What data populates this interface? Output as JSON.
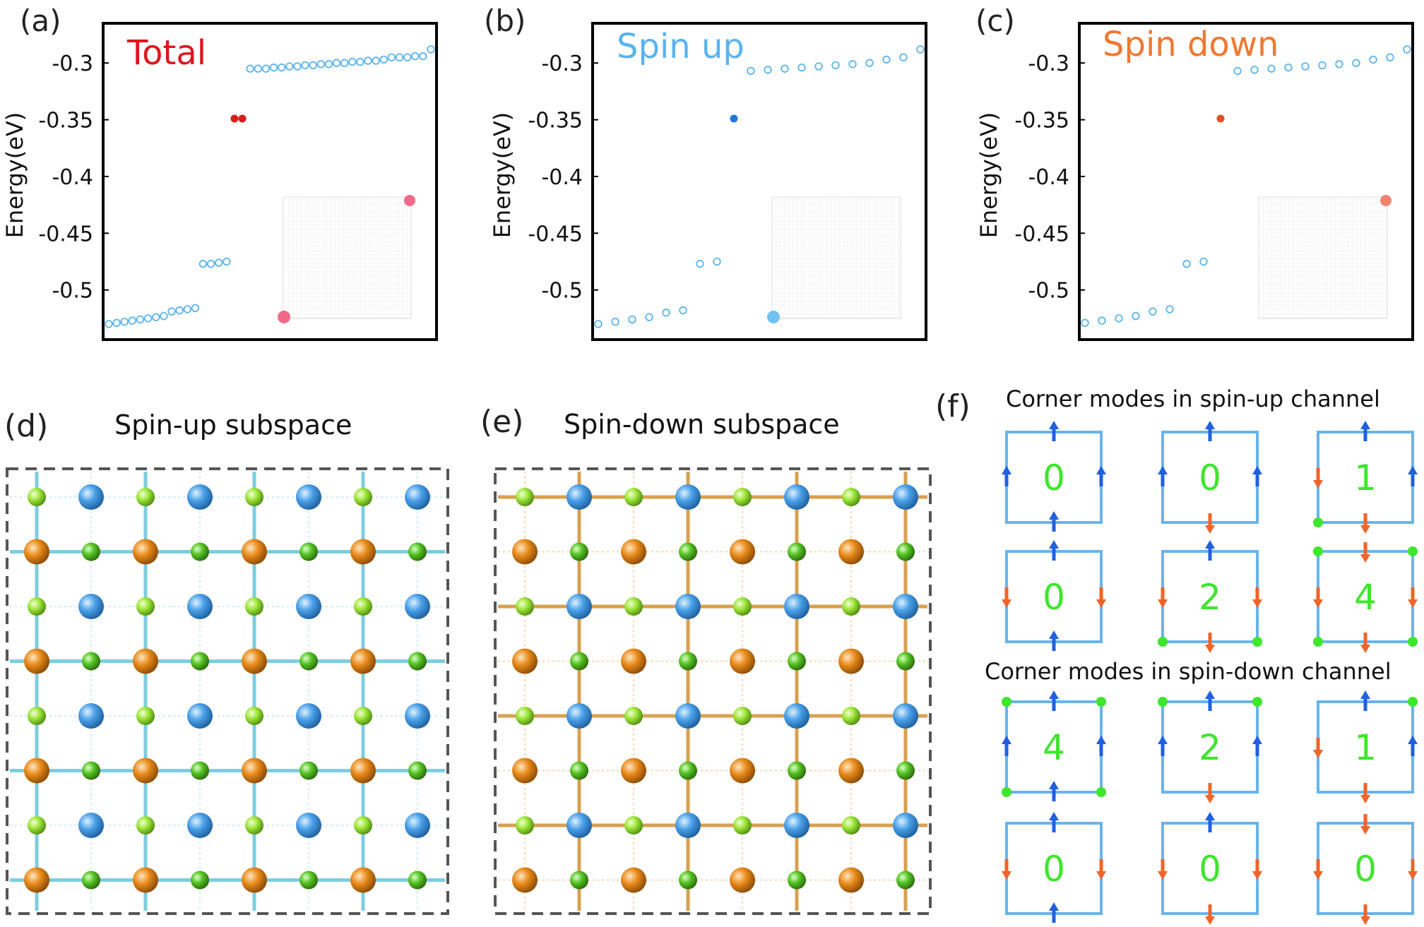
{
  "panels": {
    "a": {
      "label": "(a)",
      "title": "Total",
      "title_color": "#e0141e"
    },
    "b": {
      "label": "(b)",
      "title": "Spin up",
      "title_color": "#5ab4ef"
    },
    "c": {
      "label": "(c)",
      "title": "Spin down",
      "title_color": "#f07830"
    },
    "d": {
      "label": "(d)",
      "title": "Spin-up subspace"
    },
    "e": {
      "label": "(e)",
      "title": "Spin-down subspace"
    },
    "f": {
      "label": "(f)",
      "up_title": "Corner modes in spin-up channel",
      "down_title": "Corner modes in spin-down channel"
    }
  },
  "chart_data": [
    {
      "type": "scatter",
      "title": "Total",
      "ylabel": "Energy(eV)",
      "xlabel": "",
      "ylim": [
        -0.54,
        -0.27
      ],
      "yticks": [
        "-0.3",
        "-0.35",
        "-0.4",
        "-0.45",
        "-0.5"
      ],
      "series": [
        {
          "marker": "open-circle",
          "color": "#5ab4ef",
          "values": [
            -0.53,
            -0.529,
            -0.528,
            -0.527,
            -0.526,
            -0.525,
            -0.524,
            -0.523,
            -0.519,
            -0.518,
            -0.517,
            -0.516,
            -0.477,
            -0.477,
            -0.476,
            -0.475,
            -0.305,
            -0.305,
            -0.305,
            -0.304,
            -0.304,
            -0.303,
            -0.303,
            -0.302,
            -0.302,
            -0.301,
            -0.301,
            -0.3,
            -0.3,
            -0.299,
            -0.299,
            -0.298,
            -0.298,
            -0.297,
            -0.295,
            -0.295,
            -0.295,
            -0.294,
            -0.294,
            -0.288
          ]
        },
        {
          "marker": "filled-circle",
          "color": "#d81e1e",
          "values": [
            -0.349,
            -0.349
          ]
        }
      ]
    },
    {
      "type": "scatter",
      "title": "Spin up",
      "ylabel": "Energy(eV)",
      "xlabel": "",
      "ylim": [
        -0.54,
        -0.27
      ],
      "yticks": [
        "-0.3",
        "-0.35",
        "-0.4",
        "-0.45",
        "-0.5"
      ],
      "series": [
        {
          "marker": "open-circle",
          "color": "#5ab4ef",
          "values": [
            -0.53,
            -0.528,
            -0.526,
            -0.524,
            -0.52,
            -0.518,
            -0.477,
            -0.475,
            -0.307,
            -0.306,
            -0.305,
            -0.304,
            -0.303,
            -0.302,
            -0.301,
            -0.3,
            -0.297,
            -0.295,
            -0.288
          ]
        },
        {
          "marker": "filled-circle",
          "color": "#1e78dc",
          "values": [
            -0.349
          ]
        }
      ]
    },
    {
      "type": "scatter",
      "title": "Spin down",
      "ylabel": "Energy(eV)",
      "xlabel": "",
      "ylim": [
        -0.54,
        -0.27
      ],
      "yticks": [
        "-0.3",
        "-0.35",
        "-0.4",
        "-0.45",
        "-0.5"
      ],
      "series": [
        {
          "marker": "open-circle",
          "color": "#5ab4ef",
          "values": [
            -0.529,
            -0.527,
            -0.525,
            -0.523,
            -0.519,
            -0.517,
            -0.477,
            -0.475,
            -0.307,
            -0.306,
            -0.305,
            -0.304,
            -0.303,
            -0.302,
            -0.301,
            -0.3,
            -0.297,
            -0.295,
            -0.288
          ]
        },
        {
          "marker": "filled-circle",
          "color": "#e0502a",
          "values": [
            -0.349
          ]
        }
      ]
    }
  ],
  "corner_modes": {
    "up": [
      {
        "count": "0",
        "top": "up",
        "bottom": "up",
        "left": "up",
        "right": "up",
        "dots": []
      },
      {
        "count": "0",
        "top": "up",
        "bottom": "down",
        "left": "up",
        "right": "up",
        "dots": []
      },
      {
        "count": "1",
        "top": "up",
        "bottom": "down",
        "left": "down",
        "right": "up",
        "dots": [
          "bl"
        ]
      },
      {
        "count": "0",
        "top": "up",
        "bottom": "up",
        "left": "down",
        "right": "down",
        "dots": []
      },
      {
        "count": "2",
        "top": "up",
        "bottom": "down",
        "left": "down",
        "right": "down",
        "dots": [
          "bl",
          "br"
        ]
      },
      {
        "count": "4",
        "top": "down",
        "bottom": "down",
        "left": "down",
        "right": "down",
        "dots": [
          "tl",
          "tr",
          "bl",
          "br"
        ]
      }
    ],
    "down": [
      {
        "count": "4",
        "top": "up",
        "bottom": "up",
        "left": "up",
        "right": "up",
        "dots": [
          "tl",
          "tr",
          "bl",
          "br"
        ]
      },
      {
        "count": "2",
        "top": "up",
        "bottom": "down",
        "left": "up",
        "right": "up",
        "dots": [
          "tl",
          "tr"
        ]
      },
      {
        "count": "1",
        "top": "up",
        "bottom": "down",
        "left": "down",
        "right": "up",
        "dots": [
          "tr"
        ]
      },
      {
        "count": "0",
        "top": "up",
        "bottom": "up",
        "left": "down",
        "right": "down",
        "dots": []
      },
      {
        "count": "0",
        "top": "up",
        "bottom": "down",
        "left": "down",
        "right": "down",
        "dots": []
      },
      {
        "count": "0",
        "top": "down",
        "bottom": "down",
        "left": "down",
        "right": "down",
        "dots": []
      }
    ]
  },
  "colors": {
    "up_arrow": "#2060e0",
    "down_arrow": "#f0642a",
    "box": "#68b4ec",
    "number": "#3ee62c",
    "dot": "#3ee62c",
    "atom_blue": "#4aa0e8",
    "atom_orange": "#e88a1a",
    "atom_lime": "#9ee63a",
    "atom_green": "#56c424",
    "bond_up": "#7ecde0",
    "bond_down": "#d8a050",
    "dashed_frame": "#555555"
  }
}
